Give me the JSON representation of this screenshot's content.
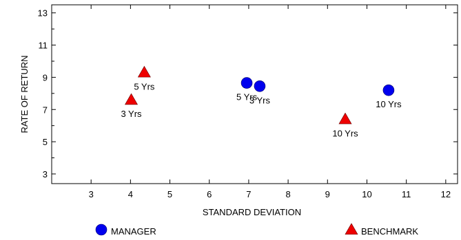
{
  "chart_data": {
    "type": "scatter",
    "title": "",
    "xlabel": "STANDARD DEVIATION",
    "ylabel": "RATE OF RETURN",
    "xlim": [
      2,
      12.3
    ],
    "ylim": [
      2.4,
      13.5
    ],
    "xticks": [
      3,
      4,
      5,
      6,
      7,
      8,
      9,
      10,
      11,
      12
    ],
    "yticks": [
      3,
      5,
      7,
      9,
      11,
      13
    ],
    "grid": false,
    "legend_position": "bottom",
    "series": [
      {
        "name": "MANAGER",
        "marker": "circle",
        "color": "#0000ee",
        "points": [
          {
            "x": 6.95,
            "y": 8.65,
            "label": "5 Yrs"
          },
          {
            "x": 7.28,
            "y": 8.45,
            "label": "3 Yrs"
          },
          {
            "x": 10.55,
            "y": 8.2,
            "label": "10 Yrs"
          }
        ]
      },
      {
        "name": "BENCHMARK",
        "marker": "triangle",
        "color": "#ee0000",
        "points": [
          {
            "x": 4.35,
            "y": 9.3,
            "label": "5 Yrs"
          },
          {
            "x": 4.02,
            "y": 7.6,
            "label": "3 Yrs"
          },
          {
            "x": 9.45,
            "y": 6.4,
            "label": "10 Yrs"
          }
        ]
      }
    ]
  }
}
